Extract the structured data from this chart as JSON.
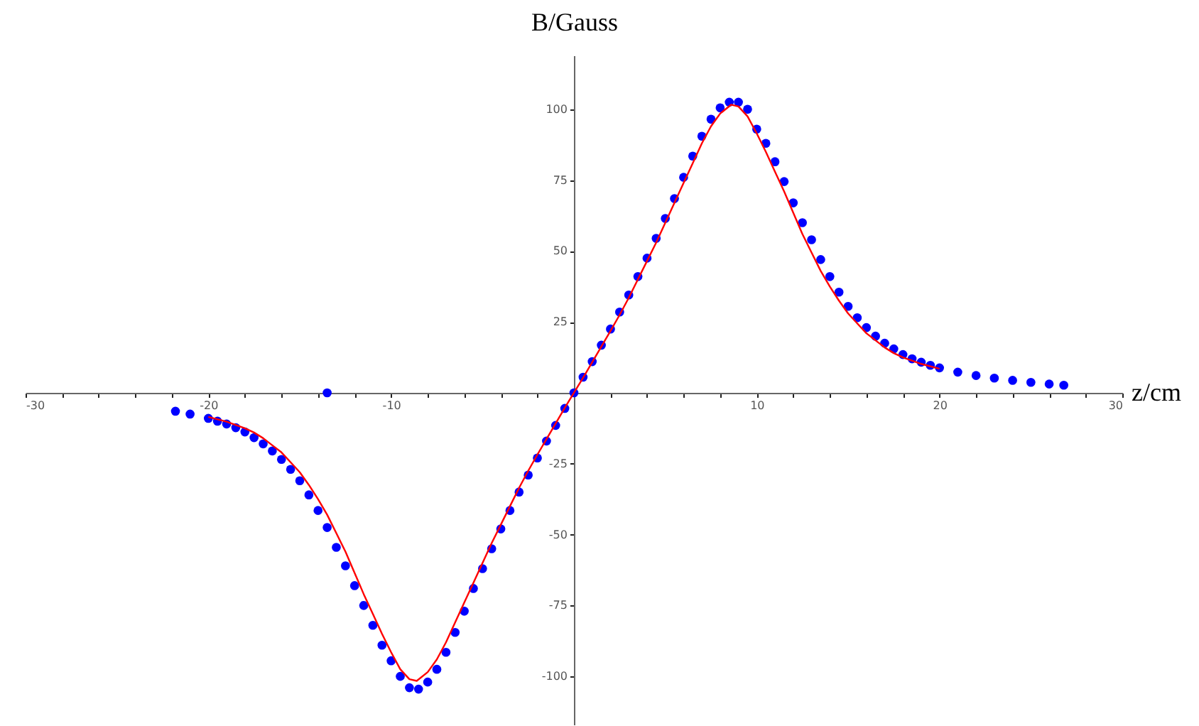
{
  "chart_data": {
    "type": "scatter",
    "xlabel": "z/cm",
    "ylabel": "B/Gauss",
    "xlim": [
      -30,
      30
    ],
    "ylim": [
      -117,
      119
    ],
    "xticks": [
      -30,
      {
        "value": -28,
        "label": null
      },
      {
        "value": -26,
        "label": null
      },
      {
        "value": -24,
        "label": null
      },
      {
        "value": -22,
        "label": null
      },
      -20,
      {
        "value": -18,
        "label": null
      },
      {
        "value": -16,
        "label": null
      },
      {
        "value": -14,
        "label": null
      },
      {
        "value": -12,
        "label": null
      },
      -10,
      {
        "value": -8,
        "label": null
      },
      {
        "value": -6,
        "label": null
      },
      {
        "value": -4,
        "label": null
      },
      {
        "value": -2,
        "label": null
      },
      {
        "value": 2,
        "label": null
      },
      {
        "value": 4,
        "label": null
      },
      {
        "value": 6,
        "label": null
      },
      {
        "value": 8,
        "label": null
      },
      10,
      {
        "value": 12,
        "label": null
      },
      {
        "value": 14,
        "label": null
      },
      {
        "value": 16,
        "label": null
      },
      {
        "value": 18,
        "label": null
      },
      20,
      {
        "value": 22,
        "label": null
      },
      {
        "value": 24,
        "label": null
      },
      {
        "value": 26,
        "label": null
      },
      {
        "value": 28,
        "label": null
      },
      30
    ],
    "yticks": [
      -100,
      -75,
      -50,
      -25,
      25,
      50,
      75,
      100
    ],
    "grid": false,
    "series": [
      {
        "marker": "circle",
        "color": "#0000ff",
        "x": [
          -21.8,
          -21,
          -20,
          -19.5,
          -19,
          -18.5,
          -18,
          -17.5,
          -17,
          -16.5,
          -16,
          -15.5,
          -15,
          -14.5,
          -14,
          -13.5,
          -13,
          -12.5,
          -12,
          -11.5,
          -11,
          -10.5,
          -10,
          -9.5,
          -9,
          -8.5,
          -8,
          -7.5,
          -7,
          -6.5,
          -6,
          -5.5,
          -5,
          -4.5,
          -4,
          -3.5,
          -3,
          -2.5,
          -2,
          -1.5,
          -1,
          -0.5,
          0,
          0.5,
          1,
          1.5,
          2,
          2.5,
          3,
          3.5,
          4,
          4.5,
          5,
          5.5,
          6,
          6.5,
          7,
          7.5,
          8,
          8.5,
          9,
          9.5,
          10,
          10.5,
          11,
          11.5,
          12,
          12.5,
          13,
          13.5,
          14,
          14.5,
          15,
          15.5,
          16,
          16.5,
          17,
          17.5,
          18,
          18.5,
          19,
          19.5,
          20,
          21,
          22,
          23,
          24,
          25,
          26,
          26.8,
          -13.5
        ],
        "values": [
          -6.5,
          -7.5,
          -9,
          -10,
          -11,
          -12.3,
          -13.8,
          -15.8,
          -18,
          -20.5,
          -23.5,
          -27,
          -31,
          -36,
          -41.5,
          -47.5,
          -54.5,
          -61,
          -68,
          -75,
          -82,
          -89,
          -94.5,
          -100,
          -104,
          -104.5,
          -102,
          -97.5,
          -91.5,
          -84.5,
          -77,
          -69,
          -62,
          -55,
          -48,
          -41.5,
          -35,
          -29,
          -23,
          -17,
          -11.5,
          -5.5,
          0,
          5.5,
          11,
          16.8,
          22.5,
          28.5,
          34.5,
          41,
          47.5,
          54.5,
          61.5,
          68.5,
          76,
          83.5,
          90.5,
          96.5,
          100.5,
          102.5,
          102.5,
          100,
          93,
          88,
          81.5,
          74.5,
          67,
          60,
          54,
          47,
          41,
          35.5,
          30.5,
          26.5,
          23,
          20,
          17.5,
          15.5,
          13.5,
          12,
          10.8,
          9.7,
          8.8,
          7.3,
          6.1,
          5.2,
          4.4,
          3.7,
          3.1,
          2.7,
          0
        ]
      },
      {
        "type": "line",
        "color": "#ff0000",
        "x": [
          -20,
          -19,
          -18,
          -17.5,
          -17,
          -16.5,
          -16,
          -15.5,
          -15,
          -14.5,
          -14,
          -13.5,
          -13,
          -12.5,
          -12,
          -11.5,
          -11,
          -10.5,
          -10,
          -9.5,
          -9,
          -8.6,
          -8,
          -7.5,
          -7,
          -6.5,
          -6,
          -5.5,
          -5,
          -4.5,
          -4,
          -3.5,
          -3,
          -2.5,
          -2,
          -1.5,
          -1,
          -0.5,
          0,
          0.5,
          1,
          1.5,
          2,
          2.5,
          3,
          3.5,
          4,
          4.5,
          5,
          5.5,
          6,
          6.5,
          7,
          7.5,
          8,
          8.6,
          9,
          9.5,
          10,
          10.5,
          11,
          11.5,
          12,
          12.5,
          13,
          13.5,
          14,
          14.5,
          15,
          15.5,
          16,
          16.5,
          17,
          17.5,
          18,
          19,
          20
        ],
        "values": [
          -8.5,
          -10.2,
          -12.5,
          -14,
          -16,
          -18.5,
          -21,
          -24.5,
          -28,
          -32.5,
          -37.5,
          -43,
          -49.5,
          -56,
          -63.5,
          -71,
          -78,
          -85,
          -91.5,
          -97.5,
          -101,
          -101.6,
          -98.5,
          -94,
          -88,
          -81,
          -74,
          -67,
          -60,
          -53,
          -46.5,
          -40,
          -33.5,
          -27.5,
          -21.8,
          -16.3,
          -10.8,
          -5.3,
          0,
          5.3,
          10.8,
          16.3,
          21.8,
          27.5,
          33.5,
          40,
          46.5,
          53,
          60,
          67,
          74,
          81,
          88,
          94,
          98.5,
          101.6,
          101,
          97.5,
          91.5,
          85,
          78,
          71,
          63.5,
          56,
          49.5,
          43,
          37.5,
          32.5,
          28,
          24.5,
          21,
          18.5,
          16,
          14,
          12.5,
          10.2,
          8.5
        ]
      }
    ]
  }
}
